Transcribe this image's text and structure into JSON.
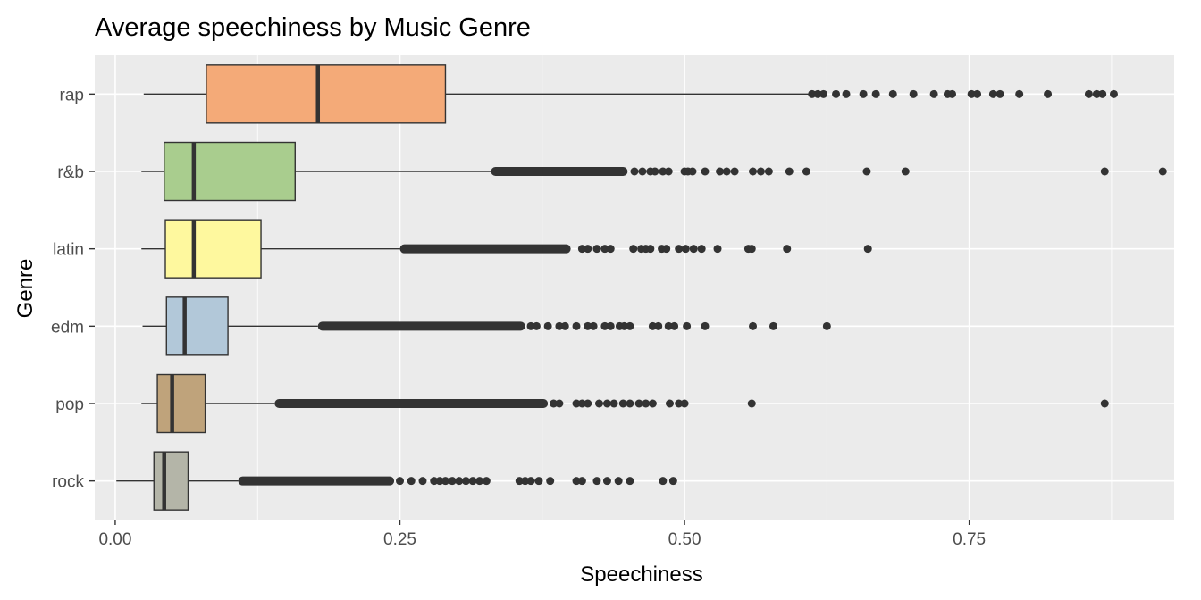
{
  "chart_data": {
    "type": "boxplot",
    "orientation": "horizontal",
    "title": "Average speechiness by Music Genre",
    "xlabel": "Speechiness",
    "ylabel": "Genre",
    "xlim": [
      -0.018,
      0.93
    ],
    "x_ticks": [
      0.0,
      0.25,
      0.5,
      0.75
    ],
    "x_tick_labels": [
      "0.00",
      "0.25",
      "0.50",
      "0.75"
    ],
    "grid": true,
    "legend": "none",
    "categories": [
      "rap",
      "r&b",
      "latin",
      "edm",
      "pop",
      "rock"
    ],
    "series": [
      {
        "category": "rap",
        "color": "#F4AA78",
        "whisker_low": 0.025,
        "q1": 0.08,
        "median": 0.178,
        "q3": 0.29,
        "whisker_high": 0.61,
        "outlier_band": [],
        "outliers": [
          0.612,
          0.617,
          0.622,
          0.633,
          0.642,
          0.657,
          0.668,
          0.683,
          0.701,
          0.719,
          0.731,
          0.735,
          0.752,
          0.757,
          0.771,
          0.777,
          0.794,
          0.819,
          0.855,
          0.862,
          0.867,
          0.877
        ]
      },
      {
        "category": "r&b",
        "color": "#A9CD8E",
        "whisker_low": 0.023,
        "q1": 0.043,
        "median": 0.069,
        "q3": 0.158,
        "whisker_high": 0.33,
        "outlier_band": [
          0.33,
          0.45
        ],
        "outliers": [
          0.456,
          0.463,
          0.47,
          0.474,
          0.481,
          0.486,
          0.5,
          0.503,
          0.507,
          0.518,
          0.531,
          0.537,
          0.544,
          0.56,
          0.567,
          0.574,
          0.592,
          0.607,
          0.66,
          0.694,
          0.869,
          0.92
        ]
      },
      {
        "category": "latin",
        "color": "#FEF89E",
        "whisker_low": 0.023,
        "q1": 0.044,
        "median": 0.069,
        "q3": 0.128,
        "whisker_high": 0.25,
        "outlier_band": [
          0.25,
          0.4
        ],
        "outliers": [
          0.41,
          0.415,
          0.423,
          0.43,
          0.435,
          0.455,
          0.462,
          0.466,
          0.47,
          0.48,
          0.484,
          0.495,
          0.501,
          0.508,
          0.515,
          0.529,
          0.556,
          0.559,
          0.59,
          0.661
        ]
      },
      {
        "category": "edm",
        "color": "#B2C8D9",
        "whisker_low": 0.024,
        "q1": 0.045,
        "median": 0.061,
        "q3": 0.099,
        "whisker_high": 0.178,
        "outlier_band": [
          0.178,
          0.36
        ],
        "outliers": [
          0.365,
          0.37,
          0.38,
          0.39,
          0.395,
          0.405,
          0.415,
          0.42,
          0.43,
          0.435,
          0.443,
          0.447,
          0.452,
          0.472,
          0.477,
          0.486,
          0.491,
          0.502,
          0.518,
          0.56,
          0.578,
          0.625
        ]
      },
      {
        "category": "pop",
        "color": "#BFA37B",
        "whisker_low": 0.023,
        "q1": 0.037,
        "median": 0.05,
        "q3": 0.079,
        "whisker_high": 0.14,
        "outlier_band": [
          0.14,
          0.38
        ],
        "outliers": [
          0.385,
          0.39,
          0.405,
          0.41,
          0.415,
          0.425,
          0.432,
          0.438,
          0.446,
          0.452,
          0.46,
          0.466,
          0.472,
          0.487,
          0.495,
          0.5,
          0.559,
          0.869
        ]
      },
      {
        "category": "rock",
        "color": "#B4B5A8",
        "whisker_low": 0.001,
        "q1": 0.034,
        "median": 0.043,
        "q3": 0.064,
        "whisker_high": 0.108,
        "outlier_band": [
          0.108,
          0.245
        ],
        "outliers": [
          0.25,
          0.26,
          0.27,
          0.28,
          0.285,
          0.29,
          0.296,
          0.302,
          0.308,
          0.314,
          0.32,
          0.326,
          0.355,
          0.36,
          0.365,
          0.372,
          0.382,
          0.405,
          0.41,
          0.423,
          0.432,
          0.442,
          0.452,
          0.481,
          0.49
        ]
      }
    ]
  }
}
